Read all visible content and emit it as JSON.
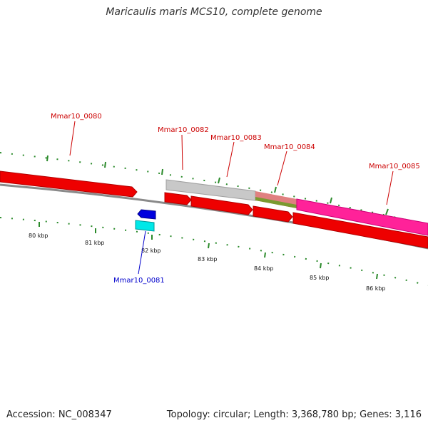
{
  "title": "Maricaulis maris MCS10, complete genome",
  "footer": {
    "accession": "Accession: NC_008347",
    "summary": "Topology: circular; Length: 3,368,780 bp; Genes: 3,116"
  },
  "colors": {
    "forward_label": "#cc0000",
    "reverse_label": "#0000cc",
    "tick": "#2a8a2a",
    "backbone": "#888888"
  },
  "scale_labels": [
    "80 kbp",
    "81 kbp",
    "82 kbp",
    "83 kbp",
    "84 kbp",
    "85 kbp",
    "86 kbp"
  ],
  "gene_labels": [
    {
      "name": "Mmar10_0080",
      "strand": "forward"
    },
    {
      "name": "Mmar10_0081",
      "strand": "reverse"
    },
    {
      "name": "Mmar10_0082",
      "strand": "forward"
    },
    {
      "name": "Mmar10_0083",
      "strand": "forward"
    },
    {
      "name": "Mmar10_0084",
      "strand": "forward"
    },
    {
      "name": "Mmar10_0085",
      "strand": "forward"
    }
  ]
}
